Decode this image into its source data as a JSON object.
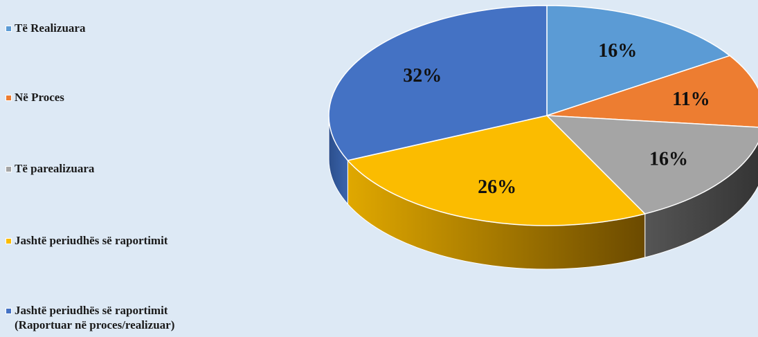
{
  "chart_data": {
    "type": "pie",
    "style": "3d-exploded-none",
    "title": "",
    "legend_position": "left",
    "slices": [
      {
        "label": "Të Realizuara",
        "value": 16,
        "display": "16%",
        "color": "#5b9bd5",
        "side_color": "#3f74a8"
      },
      {
        "label": "Në Proces",
        "value": 11,
        "display": "11%",
        "color": "#ed7d31",
        "side_color": "#b65a1e"
      },
      {
        "label": "Të parealizuara",
        "value": 16,
        "display": "16%",
        "color": "#a5a5a5",
        "side_color": "#444444"
      },
      {
        "label": "Jashtë periudhës së raportimit",
        "value": 26,
        "display": "26%",
        "color": "#fbbc00",
        "side_color": "#b88200"
      },
      {
        "label": "Jashtë periudhës së raportimit\n(Raportuar në proces/realizuar)",
        "value": 32,
        "display": "32%",
        "color": "#4472c4",
        "side_color": "#2f5597"
      }
    ]
  }
}
